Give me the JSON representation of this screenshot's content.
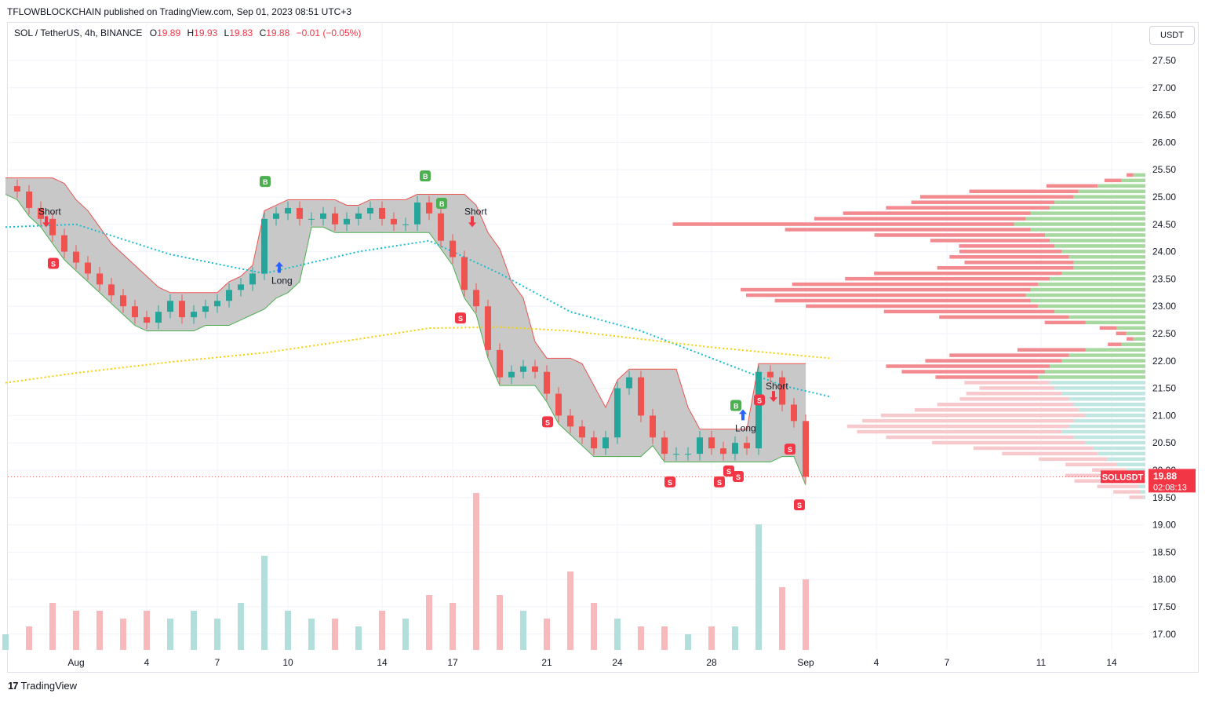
{
  "header": {
    "published_line": "TFLOWBLOCKCHAIN published on TradingView.com, Sep 01, 2023 08:51 UTC+3"
  },
  "legend": {
    "symbol": "SOL / TetherUS, 4h, BINANCE",
    "open_label": "O",
    "open": "19.89",
    "high_label": "H",
    "high": "19.93",
    "low_label": "L",
    "low": "19.83",
    "close_label": "C",
    "close": "19.88",
    "change": "−0.01 (−0.05%)"
  },
  "currency_button": "USDT",
  "price_badge": {
    "symbol": "SOLUSDT",
    "price": "19.88",
    "countdown": "02:08:13"
  },
  "footer": {
    "logo_text": "TradingView"
  },
  "colors": {
    "up": "#26a69a",
    "down": "#ef5350",
    "ema_fast": "#17becf",
    "ema_slow": "#f5d000",
    "cloud": "#c2c2c2",
    "buy_label": "#4caf50",
    "sell_label": "#f23645",
    "signal_arrow": "#2962ff"
  },
  "chart_data": {
    "type": "line",
    "title": "",
    "xlabel": "",
    "ylabel": "",
    "ylim": [
      16.7,
      28.0
    ],
    "y_ticks": [
      "27.50",
      "27.00",
      "26.50",
      "26.00",
      "25.50",
      "25.00",
      "24.50",
      "24.00",
      "23.50",
      "23.00",
      "22.50",
      "22.00",
      "21.50",
      "21.00",
      "20.50",
      "20.00",
      "19.50",
      "19.00",
      "18.50",
      "18.00",
      "17.50",
      "17.00"
    ],
    "x_ticks": [
      "Aug",
      "4",
      "7",
      "10",
      "14",
      "17",
      "21",
      "24",
      "28",
      "Sep",
      "4",
      "7",
      "11",
      "14"
    ],
    "x_tick_days": [
      0,
      3,
      6,
      9,
      13,
      16,
      20,
      23,
      27,
      31,
      34,
      37,
      41,
      44
    ],
    "grid": true,
    "close_series": {
      "name": "",
      "x_days": [
        -3,
        -2.5,
        -2,
        -1.5,
        -1,
        -0.5,
        0,
        0.5,
        1,
        1.5,
        2,
        2.5,
        3,
        3.5,
        4,
        4.5,
        5,
        5.5,
        6,
        6.5,
        7,
        7.5,
        8,
        8.5,
        9,
        9.5,
        10,
        10.5,
        11,
        11.5,
        12,
        12.5,
        13,
        13.5,
        14,
        14.5,
        15,
        15.5,
        16,
        16.5,
        17,
        17.5,
        18,
        18.5,
        19,
        19.5,
        20,
        20.5,
        21,
        21.5,
        22,
        22.5,
        23,
        23.5,
        24,
        24.5,
        25,
        25.5,
        26,
        26.5,
        27,
        27.5,
        28,
        28.5,
        29,
        29.5,
        30,
        30.5,
        31
      ],
      "values": [
        25.2,
        25.1,
        24.8,
        24.6,
        24.3,
        24.0,
        23.8,
        23.6,
        23.4,
        23.2,
        23.0,
        22.8,
        22.7,
        22.9,
        23.1,
        22.8,
        22.9,
        23.0,
        23.1,
        23.3,
        23.4,
        23.6,
        24.6,
        24.7,
        24.8,
        24.6,
        24.6,
        24.7,
        24.5,
        24.6,
        24.7,
        24.8,
        24.6,
        24.5,
        24.5,
        24.9,
        24.7,
        24.2,
        23.9,
        23.3,
        23.0,
        22.2,
        21.7,
        21.8,
        21.9,
        21.8,
        21.4,
        21.0,
        20.8,
        20.6,
        20.4,
        20.6,
        21.5,
        21.7,
        21.0,
        20.6,
        20.3,
        20.3,
        20.3,
        20.6,
        20.4,
        20.3,
        20.5,
        20.4,
        21.8,
        21.7,
        21.2,
        20.9,
        19.88
      ]
    },
    "series": [
      {
        "name": "",
        "kind": "ema-fast",
        "x_days": [
          -3,
          0,
          4,
          8,
          12,
          15,
          18,
          21,
          24,
          27,
          30,
          32
        ],
        "values": [
          24.45,
          24.5,
          23.95,
          23.6,
          24.0,
          24.2,
          23.6,
          22.9,
          22.55,
          22.05,
          21.55,
          21.35
        ]
      },
      {
        "name": "",
        "kind": "ema-slow",
        "x_days": [
          -3,
          0,
          4,
          8,
          12,
          15,
          18,
          21,
          24,
          27,
          30,
          32
        ],
        "values": [
          21.6,
          21.78,
          21.98,
          22.15,
          22.4,
          22.6,
          22.62,
          22.55,
          22.4,
          22.25,
          22.13,
          22.05
        ]
      }
    ],
    "volume": {
      "name": "",
      "x_days": [
        -3,
        -2,
        -1,
        0,
        1,
        2,
        3,
        4,
        5,
        6,
        7,
        8,
        9,
        10,
        11,
        12,
        13,
        14,
        15,
        16,
        17,
        18,
        19,
        20,
        21,
        22,
        23,
        24,
        25,
        26,
        27,
        28,
        29,
        30,
        31
      ],
      "values": [
        0.2,
        0.3,
        0.6,
        0.5,
        0.5,
        0.4,
        0.5,
        0.4,
        0.5,
        0.4,
        0.6,
        1.2,
        0.5,
        0.4,
        0.4,
        0.3,
        0.5,
        0.4,
        0.7,
        0.6,
        2.0,
        0.7,
        0.5,
        0.4,
        1.0,
        0.6,
        0.4,
        0.3,
        0.3,
        0.2,
        0.3,
        0.3,
        1.6,
        0.8,
        0.9
      ]
    },
    "signals": [
      {
        "label": "Short",
        "x_day": -1.6,
        "price": 24.65
      },
      {
        "label": "Long",
        "x_day": 8.3,
        "price": 23.7
      },
      {
        "label": "Short",
        "x_day": 16.5,
        "price": 24.65
      },
      {
        "label": "Long",
        "x_day": 28.0,
        "price": 21.0
      },
      {
        "label": "Short",
        "x_day": 29.3,
        "price": 21.45
      }
    ],
    "buy_markers": [
      "B",
      "B",
      "B",
      "B"
    ],
    "sell_markers": [
      "S",
      "S",
      "S",
      "S",
      "S",
      "S",
      "S",
      "S",
      "S",
      "S"
    ],
    "volume_profile": {
      "prices": [
        25.4,
        25.3,
        25.2,
        25.1,
        25.0,
        24.9,
        24.8,
        24.7,
        24.6,
        24.5,
        24.4,
        24.3,
        24.2,
        24.1,
        24.0,
        23.9,
        23.8,
        23.7,
        23.6,
        23.5,
        23.4,
        23.3,
        23.2,
        23.1,
        23.0,
        22.9,
        22.8,
        22.7,
        22.6,
        22.5,
        22.4,
        22.3,
        22.2,
        22.1,
        22.0,
        21.9,
        21.8,
        21.7,
        21.6,
        21.5,
        21.4,
        21.3,
        21.2,
        21.1,
        21.0,
        20.9,
        20.8,
        20.7,
        20.6,
        20.5,
        20.4,
        20.3,
        20.2,
        20.1,
        20.0,
        19.9,
        19.8,
        19.7,
        19.6,
        19.5
      ],
      "up": [
        0.05,
        0.1,
        0.2,
        0.28,
        0.3,
        0.38,
        0.4,
        0.48,
        0.5,
        0.55,
        0.48,
        0.42,
        0.4,
        0.38,
        0.35,
        0.32,
        0.3,
        0.3,
        0.35,
        0.4,
        0.45,
        0.48,
        0.5,
        0.48,
        0.45,
        0.38,
        0.32,
        0.25,
        0.12,
        0.08,
        0.05,
        0.1,
        0.25,
        0.32,
        0.35,
        0.4,
        0.42,
        0.45,
        0.4,
        0.38,
        0.35,
        0.32,
        0.3,
        0.28,
        0.25,
        0.3,
        0.32,
        0.35,
        0.3,
        0.25,
        0.22,
        0.2,
        0.16,
        0.12,
        0.08,
        0.05,
        0.04,
        0.03,
        0.02,
        0.01
      ],
      "down": [
        0.02,
        0.05,
        0.15,
        0.32,
        0.45,
        0.42,
        0.48,
        0.55,
        0.62,
        1.0,
        0.72,
        0.5,
        0.35,
        0.28,
        0.3,
        0.35,
        0.32,
        0.4,
        0.55,
        0.6,
        0.72,
        0.85,
        0.82,
        0.75,
        0.68,
        0.5,
        0.38,
        0.12,
        0.05,
        0.03,
        0.02,
        0.04,
        0.2,
        0.35,
        0.4,
        0.48,
        0.42,
        0.3,
        0.25,
        0.22,
        0.28,
        0.32,
        0.4,
        0.48,
        0.6,
        0.62,
        0.65,
        0.6,
        0.55,
        0.45,
        0.35,
        0.28,
        0.2,
        0.15,
        0.1,
        0.2,
        0.18,
        0.12,
        0.08,
        0.04
      ]
    }
  }
}
